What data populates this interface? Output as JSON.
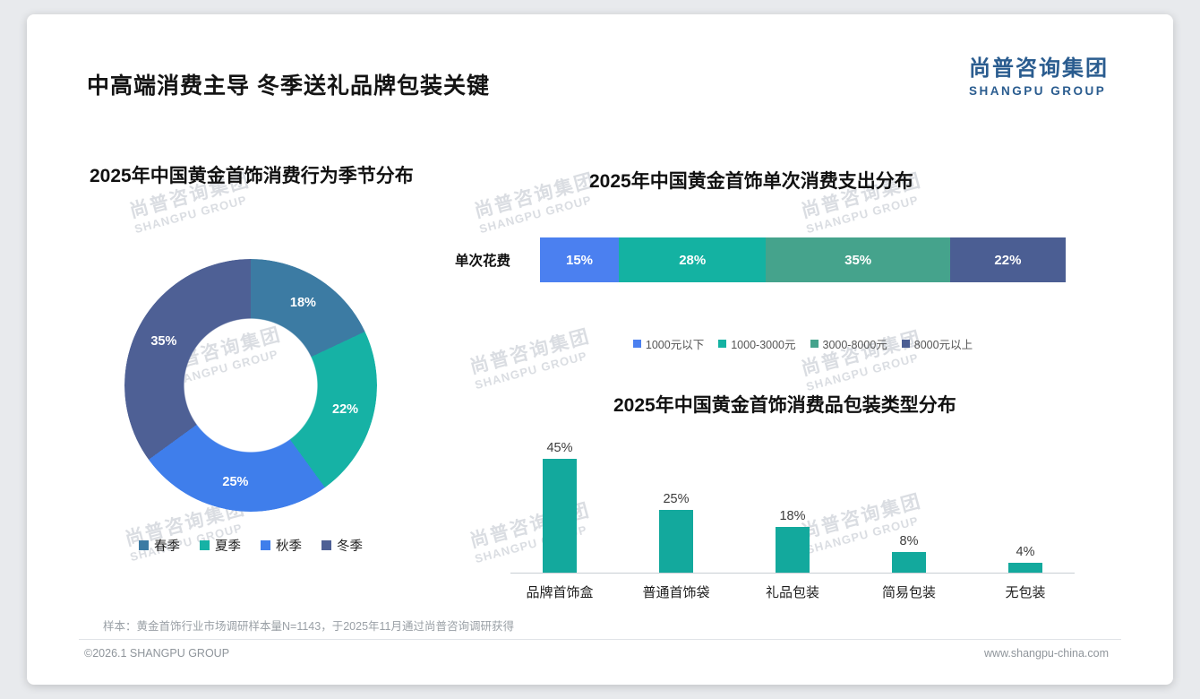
{
  "page": {
    "title": "中高端消费主导 冬季送礼品牌包装关键",
    "logo": {
      "cn": "尚普咨询集团",
      "en": "SHANGPU GROUP"
    },
    "watermark": {
      "cn": "尚普咨询集团",
      "en": "SHANGPU GROUP"
    },
    "footnote": "样本：黄金首饰行业市场调研样本量N=1143，于2025年11月通过尚普咨询调研获得",
    "footer_left": "©2026.1 SHANGPU GROUP",
    "footer_right": "www.shangpu-china.com"
  },
  "colors": {
    "logo_blue": "#2a5c8f",
    "teal": "#13a99d",
    "background": "#e8eaed"
  },
  "chart_data": [
    {
      "type": "pie",
      "variant": "donut",
      "title": "2025年中国黄金首饰消费行为季节分布",
      "labels": [
        "春季",
        "夏季",
        "秋季",
        "冬季"
      ],
      "values": [
        18,
        22,
        25,
        35
      ],
      "value_suffix": "%",
      "colors": [
        "#3c7ba3",
        "#16b2a5",
        "#3f7eeb",
        "#4e6095"
      ],
      "legend_position": "bottom",
      "start_angle_deg": 0,
      "direction": "clockwise"
    },
    {
      "type": "bar",
      "variant": "stacked-horizontal",
      "title": "2025年中国黄金首饰单次消费支出分布",
      "category": "单次花费",
      "series": [
        {
          "name": "1000元以下",
          "value": 15,
          "color": "#4b80f0"
        },
        {
          "name": "1000-3000元",
          "value": 28,
          "color": "#14b2a2"
        },
        {
          "name": "3000-8000元",
          "value": 35,
          "color": "#45a38c"
        },
        {
          "name": "8000元以上",
          "value": 22,
          "color": "#4b5e93"
        }
      ],
      "value_suffix": "%",
      "legend_position": "bottom",
      "xlim": [
        0,
        100
      ]
    },
    {
      "type": "bar",
      "variant": "vertical",
      "title": "2025年中国黄金首饰消费品包装类型分布",
      "categories": [
        "品牌首饰盒",
        "普通首饰袋",
        "礼品包装",
        "简易包装",
        "无包装"
      ],
      "values": [
        45,
        25,
        18,
        8,
        4
      ],
      "value_suffix": "%",
      "bar_color": "#13a99d",
      "ylim": [
        0,
        50
      ],
      "grid": false
    }
  ]
}
